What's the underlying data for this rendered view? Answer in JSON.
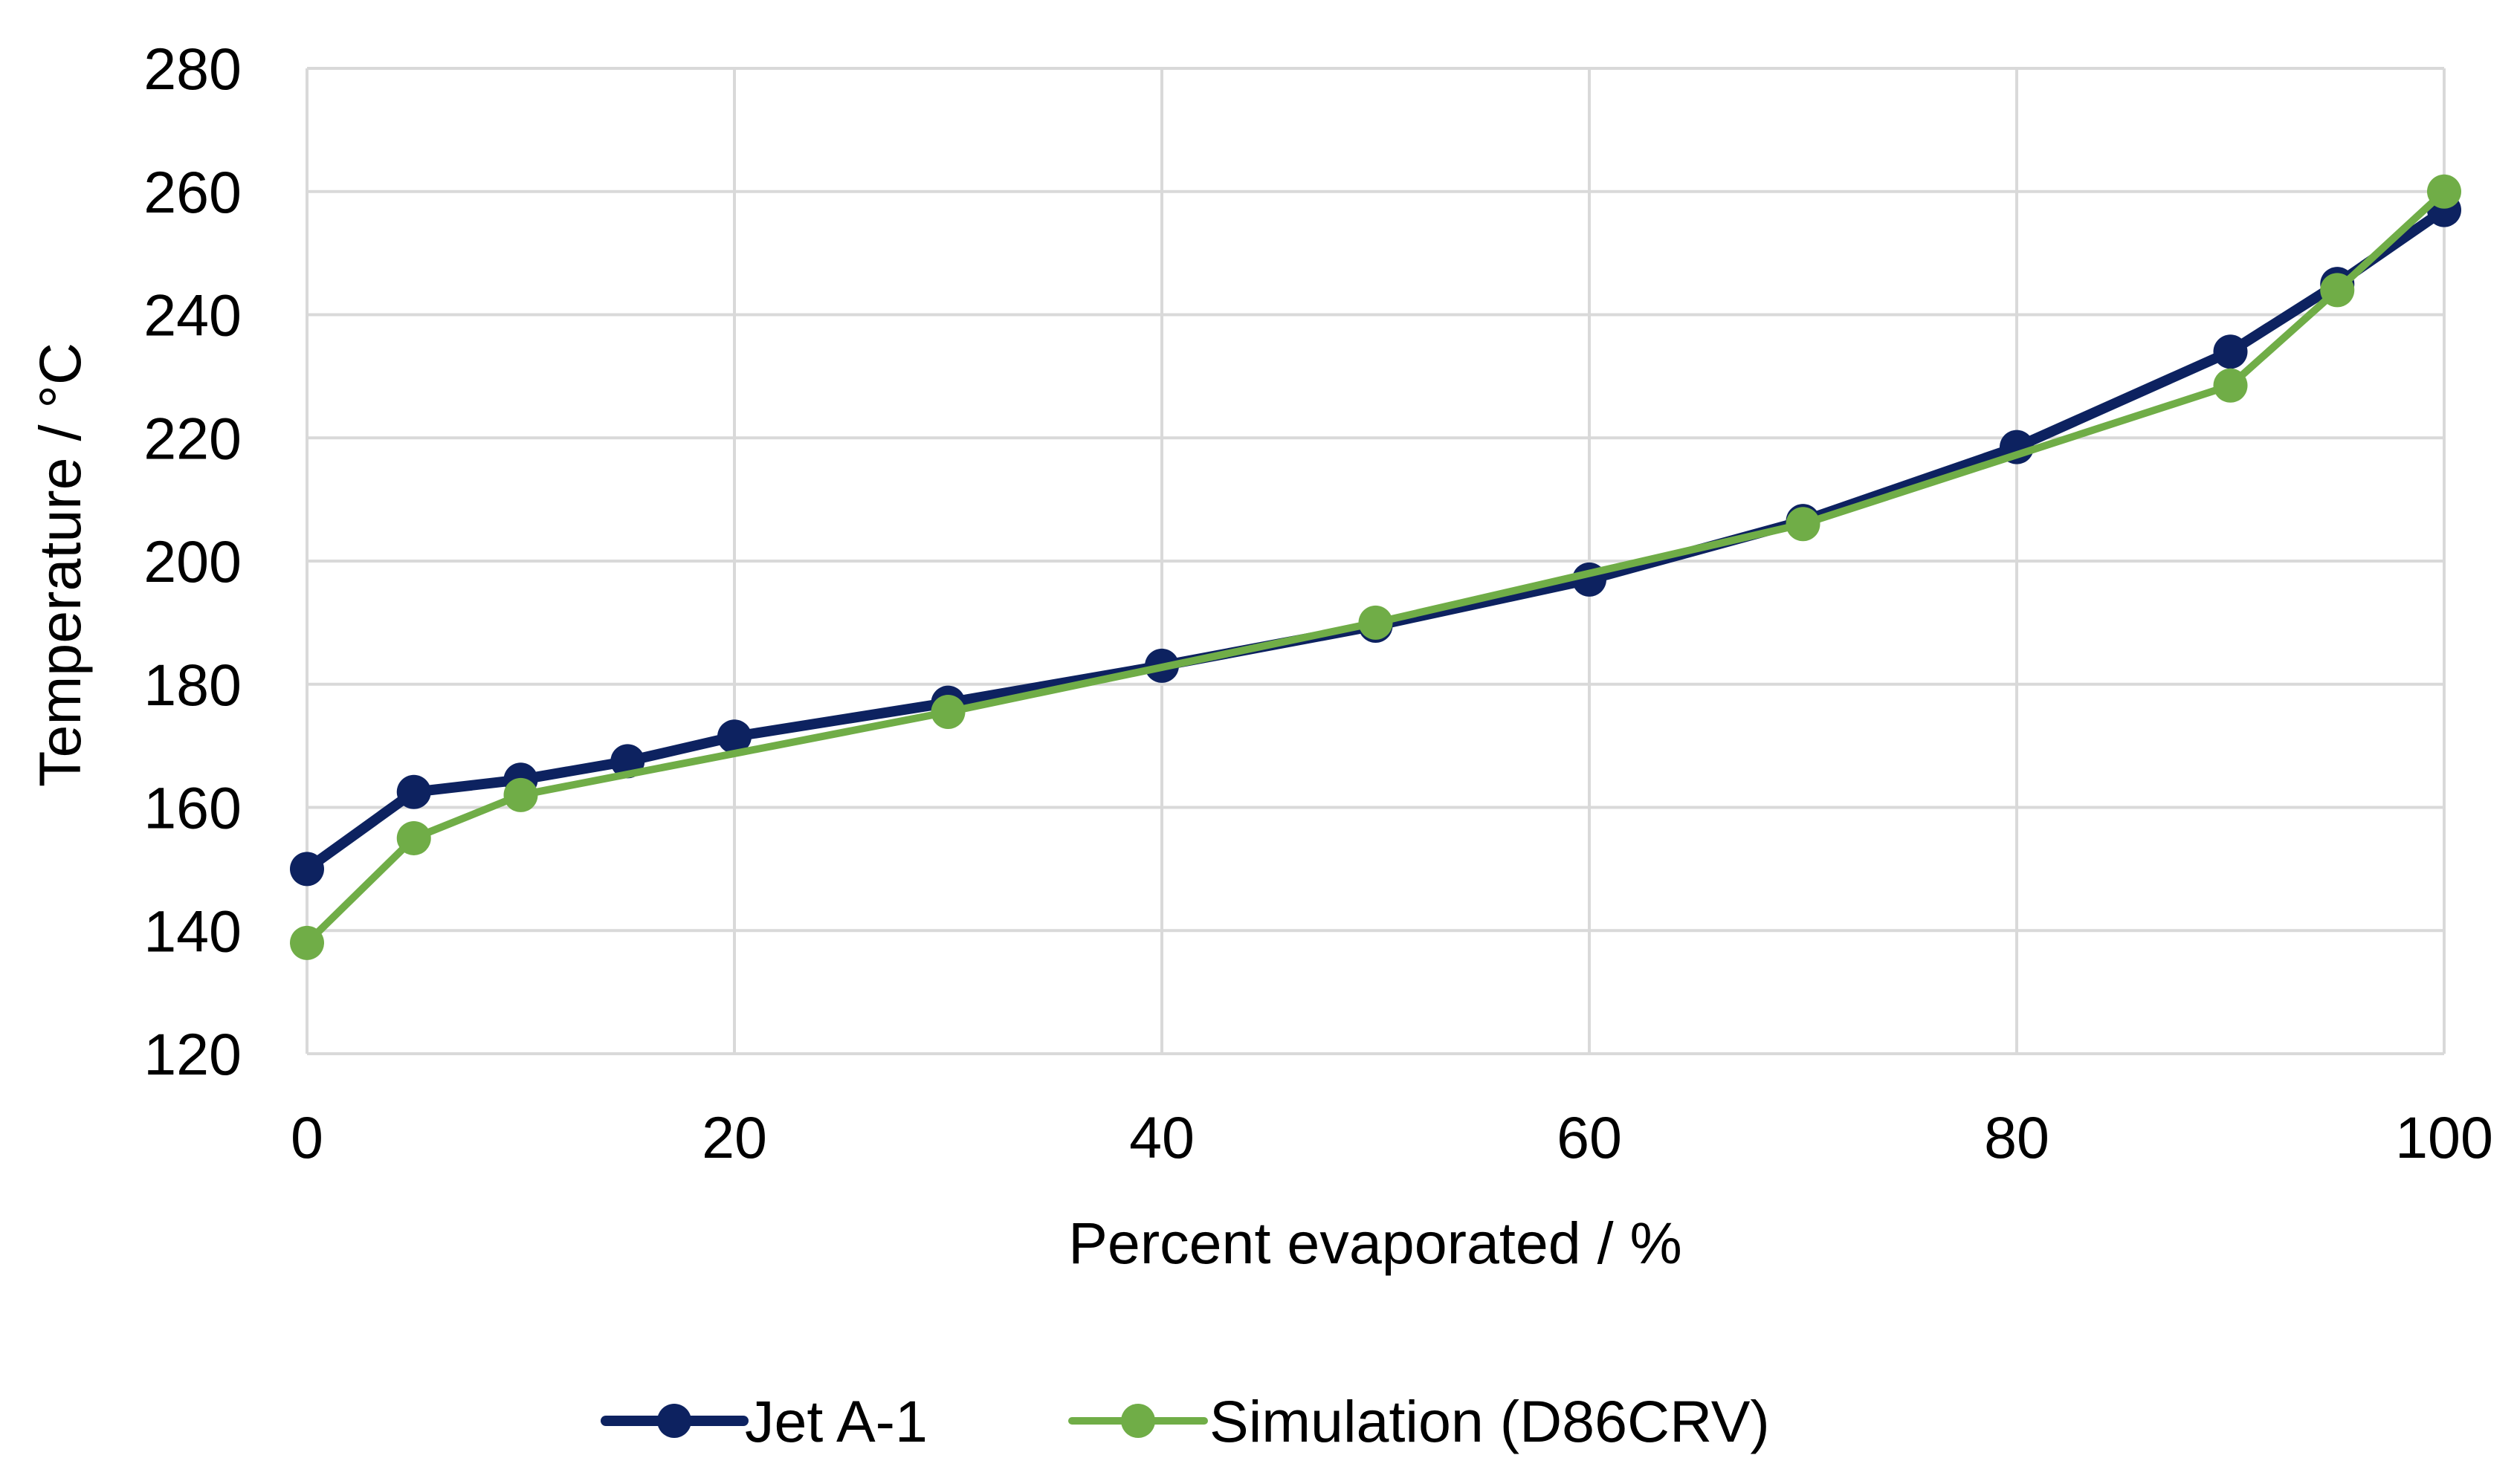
{
  "chart_data": {
    "type": "line",
    "title": "",
    "xlabel": "Percent evaporated / %",
    "ylabel": "Temperature / °C",
    "xlim": [
      0,
      100
    ],
    "ylim": [
      120,
      280
    ],
    "xticks": [
      0,
      20,
      40,
      60,
      80,
      100
    ],
    "yticks": [
      120,
      140,
      160,
      180,
      200,
      220,
      240,
      260,
      280
    ],
    "grid": true,
    "legend_position": "bottom",
    "series": [
      {
        "name": "Jet A-1",
        "color": "#0d2260",
        "x": [
          0,
          5,
          10,
          15,
          20,
          30,
          40,
          50,
          60,
          70,
          80,
          90,
          95,
          100
        ],
        "y": [
          150,
          162.5,
          164.5,
          167.5,
          171.5,
          177,
          183,
          189.5,
          197,
          206.5,
          218.5,
          234,
          245,
          257
        ]
      },
      {
        "name": "Simulation (D86CRV)",
        "color": "#70ad47",
        "x": [
          0,
          5,
          10,
          30,
          50,
          70,
          90,
          95,
          100
        ],
        "y": [
          138,
          155,
          162,
          175.5,
          190,
          206,
          228.5,
          244,
          260
        ]
      }
    ]
  }
}
